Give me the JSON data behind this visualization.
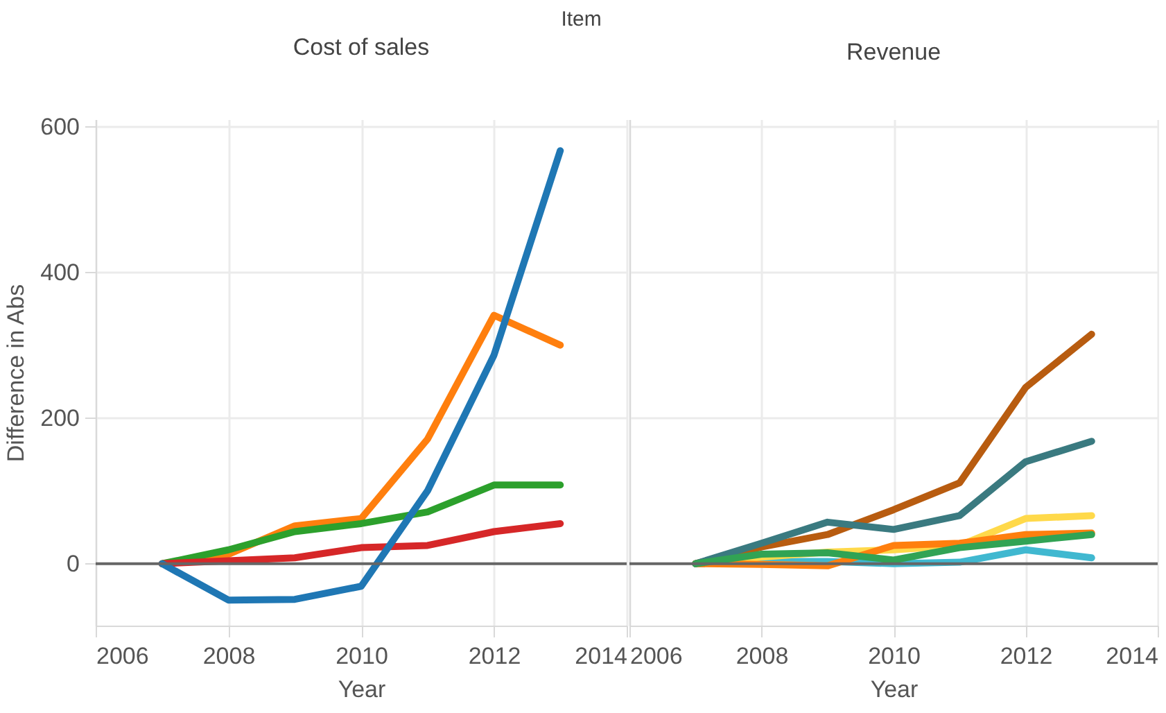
{
  "chart_data": [
    {
      "type": "line",
      "title": "Cost of sales",
      "xlabel": "Year",
      "ylabel": "Difference in Abs",
      "annotations": [
        "Item"
      ],
      "x": [
        2007,
        2008,
        2009,
        2010,
        2011,
        2012,
        2013
      ],
      "xlim": [
        2006,
        2014
      ],
      "xticks": [
        2006,
        2008,
        2010,
        2012,
        2014
      ],
      "ylim": [
        -85,
        610
      ],
      "yticks": [
        0,
        200,
        400,
        600
      ],
      "grid": true,
      "ref_lines": [
        {
          "axis": "y",
          "value": 0,
          "color": "#666666"
        }
      ],
      "series": [
        {
          "color": "#ff7f0e",
          "values": [
            0,
            13,
            52,
            62,
            171,
            341,
            300
          ]
        },
        {
          "color": "#2ca02c",
          "values": [
            0,
            19,
            44,
            55,
            71,
            108,
            108
          ]
        },
        {
          "color": "#d62728",
          "values": [
            0,
            4,
            8,
            22,
            25,
            44,
            55
          ]
        },
        {
          "color": "#1f77b4",
          "values": [
            0,
            -50,
            -49,
            -31,
            100,
            286,
            567
          ]
        }
      ]
    },
    {
      "type": "line",
      "title": "Revenue",
      "xlabel": "Year",
      "x": [
        2007,
        2008,
        2009,
        2010,
        2011,
        2012,
        2013
      ],
      "xlim": [
        2006,
        2014
      ],
      "xticks": [
        2006,
        2008,
        2010,
        2012,
        2014
      ],
      "ylim": [
        -85,
        610
      ],
      "yticks": [
        0,
        200,
        400,
        600
      ],
      "tick_labels": "x",
      "grid": true,
      "ref_lines": [
        {
          "axis": "y",
          "value": 0,
          "color": "#666666"
        }
      ],
      "series": [
        {
          "color": "#40b8d0",
          "values": [
            0,
            3,
            3,
            0,
            2,
            19,
            8
          ]
        },
        {
          "color": "#ffd94a",
          "values": [
            0,
            9,
            16,
            19,
            25,
            62,
            66
          ]
        },
        {
          "color": "#ff7f0e",
          "values": [
            0,
            -1,
            -3,
            25,
            28,
            40,
            42
          ]
        },
        {
          "color": "#b85c10",
          "values": [
            0,
            23,
            40,
            74,
            111,
            242,
            315
          ]
        },
        {
          "color": "#3a7a80",
          "values": [
            0,
            28,
            57,
            47,
            66,
            140,
            168
          ]
        },
        {
          "color": "#31a354",
          "values": [
            0,
            13,
            15,
            5,
            22,
            31,
            40
          ]
        }
      ]
    }
  ]
}
